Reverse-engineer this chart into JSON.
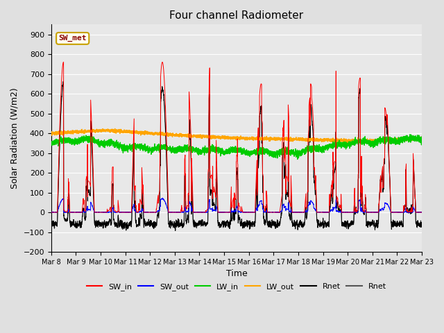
{
  "title": "Four channel Radiometer",
  "xlabel": "Time",
  "ylabel": "Solar Radiation (W/m2)",
  "ylim": [
    -200,
    950
  ],
  "yticks": [
    -200,
    -100,
    0,
    100,
    200,
    300,
    400,
    500,
    600,
    700,
    800,
    900
  ],
  "background_color": "#e0e0e0",
  "plot_bg_color": "#e8e8e8",
  "annotation_text": "SW_met",
  "annotation_bg": "#fffff0",
  "annotation_border": "#c8a000",
  "annotation_text_color": "#8b0000",
  "n_days": 15,
  "start_day": 8,
  "end_day": 23,
  "colors": {
    "SW_in": "#ff0000",
    "SW_out": "#0000ff",
    "LW_in": "#00cc00",
    "LW_out": "#ffa500",
    "Rnet_black": "#000000",
    "Rnet_dark": "#555555"
  },
  "legend_labels": [
    "SW_in",
    "SW_out",
    "LW_in",
    "LW_out",
    "Rnet",
    "Rnet"
  ],
  "legend_colors": [
    "#ff0000",
    "#0000ff",
    "#00cc00",
    "#ffa500",
    "#000000",
    "#555555"
  ]
}
